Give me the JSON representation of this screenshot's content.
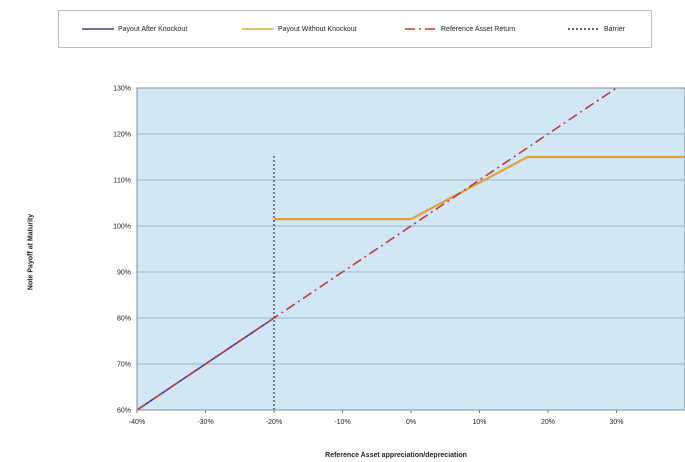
{
  "legend": [
    {
      "label": "Payout After Knockout",
      "color": "#3a3f99",
      "dash": "solid"
    },
    {
      "label": "Payout Without Knockout",
      "color": "#e8a030",
      "dash": "solid"
    },
    {
      "label": "Reference Asset Return",
      "color": "#c8383a",
      "dash": "dashdot"
    },
    {
      "label": "Barrier",
      "color": "#333333",
      "dash": "dotted"
    }
  ],
  "chart_data": {
    "type": "line",
    "title": "",
    "xlabel": "Reference Asset appreciation/depreciation",
    "ylabel": "Note Payoff at Maturity",
    "xlim": [
      -40,
      40
    ],
    "ylim": [
      60,
      130
    ],
    "x_ticks": [
      "-40%",
      "-30%",
      "-20%",
      "-10%",
      "0%",
      "10%",
      "20%",
      "30%"
    ],
    "x_tick_values": [
      -40,
      -30,
      -20,
      -10,
      0,
      10,
      20,
      30
    ],
    "y_ticks": [
      "60%",
      "70%",
      "80%",
      "90%",
      "100%",
      "110%",
      "120%",
      "130%"
    ],
    "y_tick_values": [
      60,
      70,
      80,
      90,
      100,
      110,
      120,
      130
    ],
    "grid": true,
    "legend_position": "top",
    "plot_background": "#cfe8f3",
    "series": [
      {
        "name": "Payout After Knockout",
        "color": "#3a3f99",
        "x": [
          -40,
          -20
        ],
        "y": [
          60,
          80
        ]
      },
      {
        "name": "Payout Without Knockout",
        "color": "#e8a030",
        "x": [
          -20,
          0,
          0,
          17,
          17,
          40
        ],
        "y": [
          101.5,
          101.5,
          101.5,
          115,
          115,
          115
        ]
      },
      {
        "name": "Reference Asset Return",
        "color": "#c8383a",
        "x": [
          -40,
          40
        ],
        "y": [
          60,
          140
        ]
      },
      {
        "name": "Barrier",
        "color": "#333333",
        "x": [
          -20,
          -20
        ],
        "y": [
          60,
          115.5
        ]
      }
    ]
  }
}
